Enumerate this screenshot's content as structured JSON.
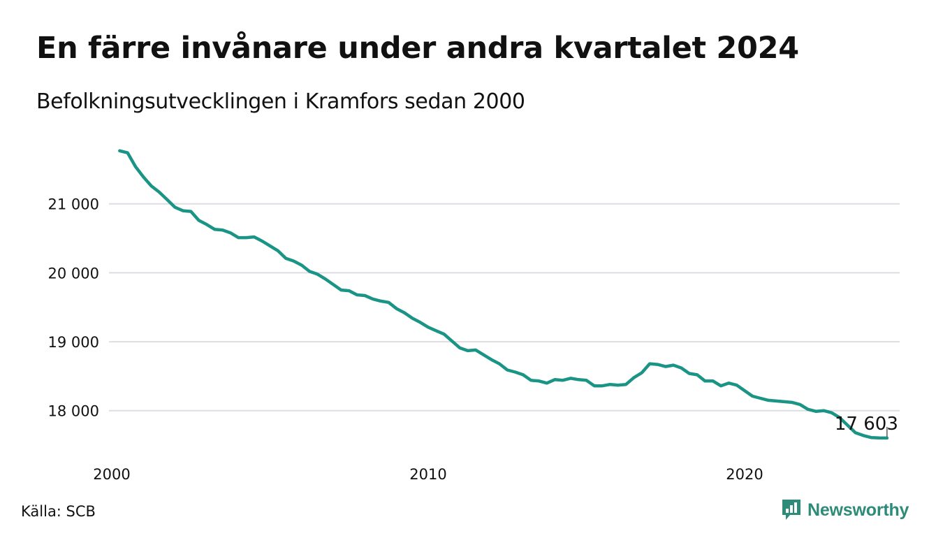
{
  "title": "En färre invånare under andra kvartalet 2024",
  "subtitle": "Befolkningsutvecklingen i Kramfors sedan 2000",
  "source": "Källa: SCB",
  "brand": {
    "name": "Newsworthy",
    "color": "#2e8b78"
  },
  "chart_data": {
    "type": "line",
    "title": "En färre invånare under andra kvartalet 2024",
    "subtitle": "Befolkningsutvecklingen i Kramfors sedan 2000",
    "xlabel": "",
    "ylabel": "",
    "xlim": [
      2000,
      2024.9
    ],
    "ylim": [
      17450,
      21950
    ],
    "x_ticks": [
      2000,
      2010,
      2020
    ],
    "x_tick_labels": [
      "2000",
      "2010",
      "2020"
    ],
    "y_ticks": [
      18000,
      19000,
      20000,
      21000
    ],
    "y_tick_labels": [
      "18 000",
      "19 000",
      "20 000",
      "21 000"
    ],
    "grid": "horizontal",
    "line_color": "#1a9485",
    "end_label": "17 603",
    "series": [
      {
        "x": [
          2000.25,
          2000.5,
          2000.75,
          2001.0,
          2001.25,
          2001.5,
          2001.75,
          2002.0,
          2002.25,
          2002.5,
          2002.75,
          2003.0,
          2003.25,
          2003.5,
          2003.75,
          2004.0,
          2004.25,
          2004.5,
          2004.75,
          2005.0,
          2005.25,
          2005.5,
          2005.75,
          2006.0,
          2006.25,
          2006.5,
          2006.75,
          2007.0,
          2007.25,
          2007.5,
          2007.75,
          2008.0,
          2008.25,
          2008.5,
          2008.75,
          2009.0,
          2009.25,
          2009.5,
          2009.75,
          2010.0,
          2010.25,
          2010.5,
          2010.75,
          2011.0,
          2011.25,
          2011.5,
          2011.75,
          2012.0,
          2012.25,
          2012.5,
          2012.75,
          2013.0,
          2013.25,
          2013.5,
          2013.75,
          2014.0,
          2014.25,
          2014.5,
          2014.75,
          2015.0,
          2015.25,
          2015.5,
          2015.75,
          2016.0,
          2016.25,
          2016.5,
          2016.75,
          2017.0,
          2017.25,
          2017.5,
          2017.75,
          2018.0,
          2018.25,
          2018.5,
          2018.75,
          2019.0,
          2019.25,
          2019.5,
          2019.75,
          2020.0,
          2020.25,
          2020.5,
          2020.75,
          2021.0,
          2021.25,
          2021.5,
          2021.75,
          2022.0,
          2022.25,
          2022.5,
          2022.75,
          2023.0,
          2023.25,
          2023.5,
          2023.75,
          2024.0,
          2024.25,
          2024.5
        ],
        "values": [
          21770,
          21740,
          21540,
          21390,
          21260,
          21170,
          21060,
          20950,
          20900,
          20890,
          20760,
          20700,
          20630,
          20620,
          20580,
          20510,
          20510,
          20520,
          20460,
          20390,
          20320,
          20210,
          20170,
          20110,
          20020,
          19980,
          19910,
          19830,
          19750,
          19740,
          19680,
          19670,
          19620,
          19590,
          19570,
          19480,
          19420,
          19340,
          19280,
          19210,
          19160,
          19110,
          19010,
          18910,
          18870,
          18880,
          18810,
          18740,
          18680,
          18590,
          18560,
          18520,
          18440,
          18430,
          18400,
          18450,
          18440,
          18470,
          18450,
          18440,
          18360,
          18360,
          18380,
          18370,
          18380,
          18480,
          18550,
          18680,
          18670,
          18640,
          18660,
          18620,
          18540,
          18520,
          18430,
          18430,
          18360,
          18400,
          18370,
          18290,
          18210,
          18180,
          18150,
          18140,
          18130,
          18120,
          18090,
          18020,
          17990,
          18000,
          17970,
          17900,
          17790,
          17680,
          17640,
          17610,
          17604,
          17603
        ]
      }
    ]
  }
}
